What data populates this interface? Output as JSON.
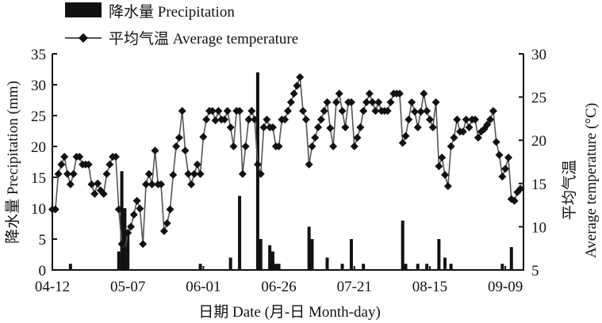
{
  "chart_data": {
    "type": "bar+line",
    "xlabel": "日期 Date (月-日 Month-day)",
    "ylabel_left": "降水量 Precipitation (mm)",
    "ylabel_right_cn": "平均气温",
    "ylabel_right_en": "Average temperature (°C)",
    "x_tick_labels": [
      "04-12",
      "05-07",
      "06-01",
      "06-26",
      "07-21",
      "08-15",
      "09-09"
    ],
    "x_tick_days": [
      0,
      25,
      50,
      75,
      100,
      125,
      150
    ],
    "xlim_days_from_04-12": [
      0,
      156
    ],
    "ylim_left": [
      0,
      35
    ],
    "yticks_left": [
      "0",
      "5",
      "10",
      "15",
      "20",
      "25",
      "30",
      "35"
    ],
    "ylim_right": [
      5,
      30
    ],
    "yticks_right": [
      "5",
      "10",
      "15",
      "20",
      "25",
      "30"
    ],
    "grid": false,
    "legend_position": "top-left",
    "legend": {
      "precip": "降水量 Precipitation",
      "temp": "平均气温 Average temperature"
    },
    "colors": {
      "bar": "#111111",
      "line": "#555555",
      "marker": "#111111"
    },
    "precipitation": {
      "name": "降水量 Precipitation",
      "days": [
        6,
        22,
        23,
        24,
        25,
        49,
        59,
        62,
        68,
        69,
        72,
        73,
        74,
        75,
        85,
        86,
        91,
        96,
        99,
        103,
        116,
        117,
        121,
        124,
        128,
        130,
        132,
        149,
        152
      ],
      "values": [
        1,
        3,
        16,
        10,
        6,
        1,
        2,
        12,
        32,
        5,
        4,
        3,
        1,
        1,
        7,
        5,
        2,
        1,
        5,
        1,
        8,
        1,
        1,
        1,
        5,
        2,
        1,
        1,
        3.7
      ]
    },
    "temperature": {
      "name": "平均气温 Average temperature",
      "values": [
        12,
        12,
        16.1,
        17.2,
        18.1,
        16.1,
        14.9,
        16.1,
        18.1,
        18.1,
        17.2,
        17.2,
        17.2,
        14.9,
        13.8,
        15,
        14.2,
        13.8,
        16.1,
        17.2,
        18.1,
        18.1,
        12,
        8,
        7.3,
        9.3,
        10,
        11.4,
        13,
        12.1,
        8,
        14.9,
        16.1,
        14.9,
        18.8,
        14.9,
        14.9,
        9.5,
        10.4,
        12,
        16,
        19.3,
        20.3,
        23.4,
        18.8,
        16.1,
        14.9,
        16.1,
        17.2,
        16.1,
        20.4,
        22.4,
        23.4,
        23.4,
        22.3,
        23.4,
        22.4,
        22.4,
        23.4,
        21.5,
        19.3,
        23.4,
        23.4,
        16.1,
        19.3,
        22.4,
        23.4,
        22.4,
        17.2,
        16.1,
        21.5,
        22.4,
        21.5,
        21.5,
        19.3,
        19.3,
        22.4,
        22.4,
        23.4,
        24.4,
        25.4,
        26.3,
        27.3,
        23.4,
        22.4,
        17.2,
        19.3,
        20.3,
        21.5,
        22.4,
        23.4,
        24.4,
        21.4,
        19.3,
        24.4,
        25.4,
        23.4,
        21.5,
        24.4,
        24.4,
        19.3,
        20.3,
        21.5,
        23.4,
        24.4,
        25.4,
        24.4,
        23.4,
        24.4,
        23.4,
        23.4,
        23.4,
        24.4,
        25.4,
        25.4,
        25.4,
        19.7,
        20.5,
        22.4,
        24.4,
        23.3,
        21.5,
        23.3,
        25.4,
        23.4,
        22.4,
        21.5,
        24.4,
        17,
        18,
        16,
        14.7,
        19.3,
        20.3,
        22.4,
        21,
        21,
        22.4,
        21.5,
        22.4,
        22.4,
        20.3,
        21,
        21.3,
        21.8,
        22.4,
        23.4,
        19.8,
        18.3,
        15.8,
        16.7,
        18,
        13.2,
        13,
        14,
        14.4
      ]
    }
  }
}
